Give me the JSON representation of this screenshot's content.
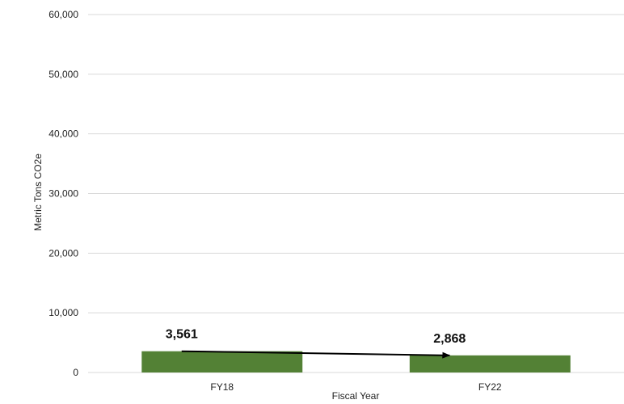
{
  "chart_data": {
    "type": "bar",
    "title": "",
    "xlabel": "Fiscal Year",
    "ylabel": "Metric Tons CO2e",
    "categories": [
      "FY18",
      "FY22"
    ],
    "values": [
      3561,
      2868
    ],
    "data_labels": [
      "3,561",
      "2,868"
    ],
    "ylim": [
      0,
      60000
    ],
    "yticks": [
      0,
      10000,
      20000,
      30000,
      40000,
      50000,
      60000
    ],
    "ytick_labels": [
      "0",
      "10,000",
      "20,000",
      "30,000",
      "40,000",
      "50,000",
      "60,000"
    ],
    "grid": true,
    "legend": "none",
    "annotation": "trend arrow from FY18 to FY22"
  },
  "colors": {
    "bar": "#538135",
    "grid": "#d9d9d9",
    "arrow": "#000000"
  }
}
